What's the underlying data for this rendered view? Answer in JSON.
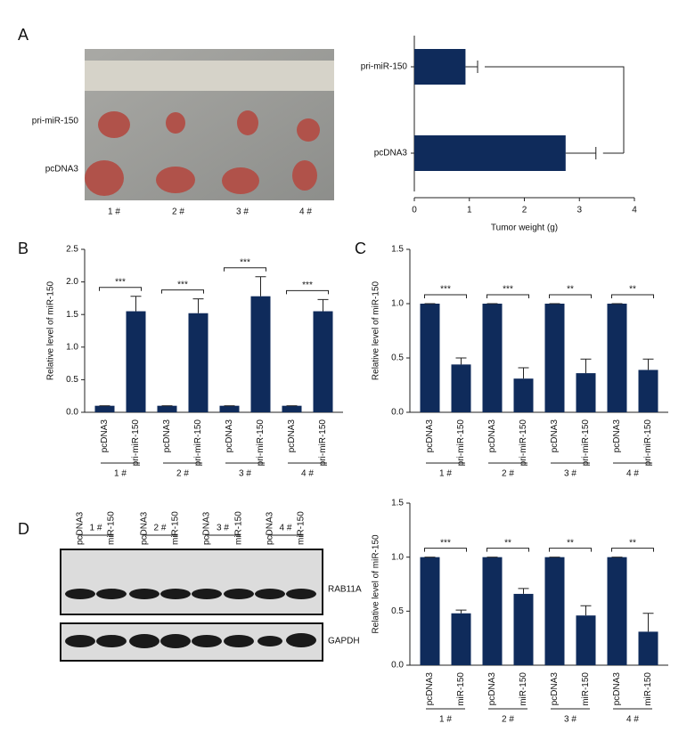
{
  "panels": [
    "A",
    "B",
    "C",
    "D"
  ],
  "photo": {
    "rows": [
      "pri-miR-150",
      "pcDNA3"
    ],
    "samples": [
      "1 #",
      "2 #",
      "3 #",
      "4 #"
    ]
  },
  "blot": {
    "groups": [
      "1 #",
      "2 #",
      "3 #",
      "4 #"
    ],
    "lanes": [
      "pcDNA3",
      "miR-150",
      "pcDNA3",
      "miR-150",
      "pcDNA3",
      "miR-150",
      "pcDNA3",
      "miR-150"
    ],
    "bands": [
      "RAB11A",
      "GAPDH"
    ]
  },
  "chart_data": [
    {
      "type": "barh",
      "categories": [
        "pri-miR-150",
        "pcDNA3"
      ],
      "values": [
        0.93,
        2.75
      ],
      "errors": [
        0.22,
        0.55
      ],
      "color": "#0f2b5b",
      "xlim": [
        0,
        4
      ],
      "xticks": [
        0,
        1,
        2,
        3,
        4
      ],
      "xlabel": "Tumor weight (g)"
    },
    {
      "type": "bar",
      "ylabel": "Relative level of miR-150",
      "color": "#0f2b5b",
      "categories": [
        "pcDNA3",
        "pri-miR-150",
        "pcDNA3",
        "pri-miR-150",
        "pcDNA3",
        "pri-miR-150",
        "pcDNA3",
        "pri-miR-150"
      ],
      "values": [
        0.1,
        1.55,
        0.1,
        1.52,
        0.1,
        1.78,
        0.1,
        1.55
      ],
      "errors": [
        0,
        0.23,
        0,
        0.22,
        0,
        0.3,
        0,
        0.18
      ],
      "groups": [
        "1 #",
        "2 #",
        "3 #",
        "4 #"
      ],
      "significance": [
        "***",
        "***",
        "***",
        "***"
      ],
      "ylim": [
        0,
        2.5
      ],
      "yticks": [
        {
          "value": 0,
          "label": "0.0"
        },
        0.5,
        {
          "value": 1,
          "label": "1.0"
        },
        1.5,
        {
          "value": 2,
          "label": "2.0"
        },
        2.5
      ]
    },
    {
      "type": "bar",
      "ylabel": "Relative level of miR-150",
      "color": "#0f2b5b",
      "categories": [
        "pcDNA3",
        "pri-miR-150",
        "pcDNA3",
        "pri-miR-150",
        "pcDNA3",
        "pri-miR-150",
        "pcDNA3",
        "pri-miR-150"
      ],
      "values": [
        1,
        0.44,
        1,
        0.31,
        1,
        0.36,
        1,
        0.39
      ],
      "errors": [
        0,
        0.06,
        0,
        0.1,
        0,
        0.13,
        0,
        0.1
      ],
      "groups": [
        "1 #",
        "2 #",
        "3 #",
        "4 #"
      ],
      "significance": [
        "***",
        "***",
        "**",
        "**"
      ],
      "ylim": [
        0,
        1.5
      ],
      "yticks": [
        {
          "value": 0,
          "label": "0.0"
        },
        0.5,
        {
          "value": 1,
          "label": "1.0"
        },
        1.5
      ]
    },
    {
      "type": "bar",
      "ylabel": "Relative level of miR-150",
      "color": "#0f2b5b",
      "categories": [
        "pcDNA3",
        "miR-150",
        "pcDNA3",
        "miR-150",
        "pcDNA3",
        "miR-150",
        "pcDNA3",
        "miR-150"
      ],
      "values": [
        1,
        0.48,
        1,
        0.66,
        1,
        0.46,
        1,
        0.31
      ],
      "errors": [
        0,
        0.03,
        0,
        0.05,
        0,
        0.09,
        0,
        0.17
      ],
      "groups": [
        "1 #",
        "2 #",
        "3 #",
        "4 #"
      ],
      "significance": [
        "***",
        "**",
        "**",
        "**"
      ],
      "ylim": [
        0,
        1.5
      ],
      "yticks": [
        {
          "value": 0,
          "label": "0.0"
        },
        0.5,
        {
          "value": 1,
          "label": "1.0"
        },
        1.5
      ]
    }
  ]
}
